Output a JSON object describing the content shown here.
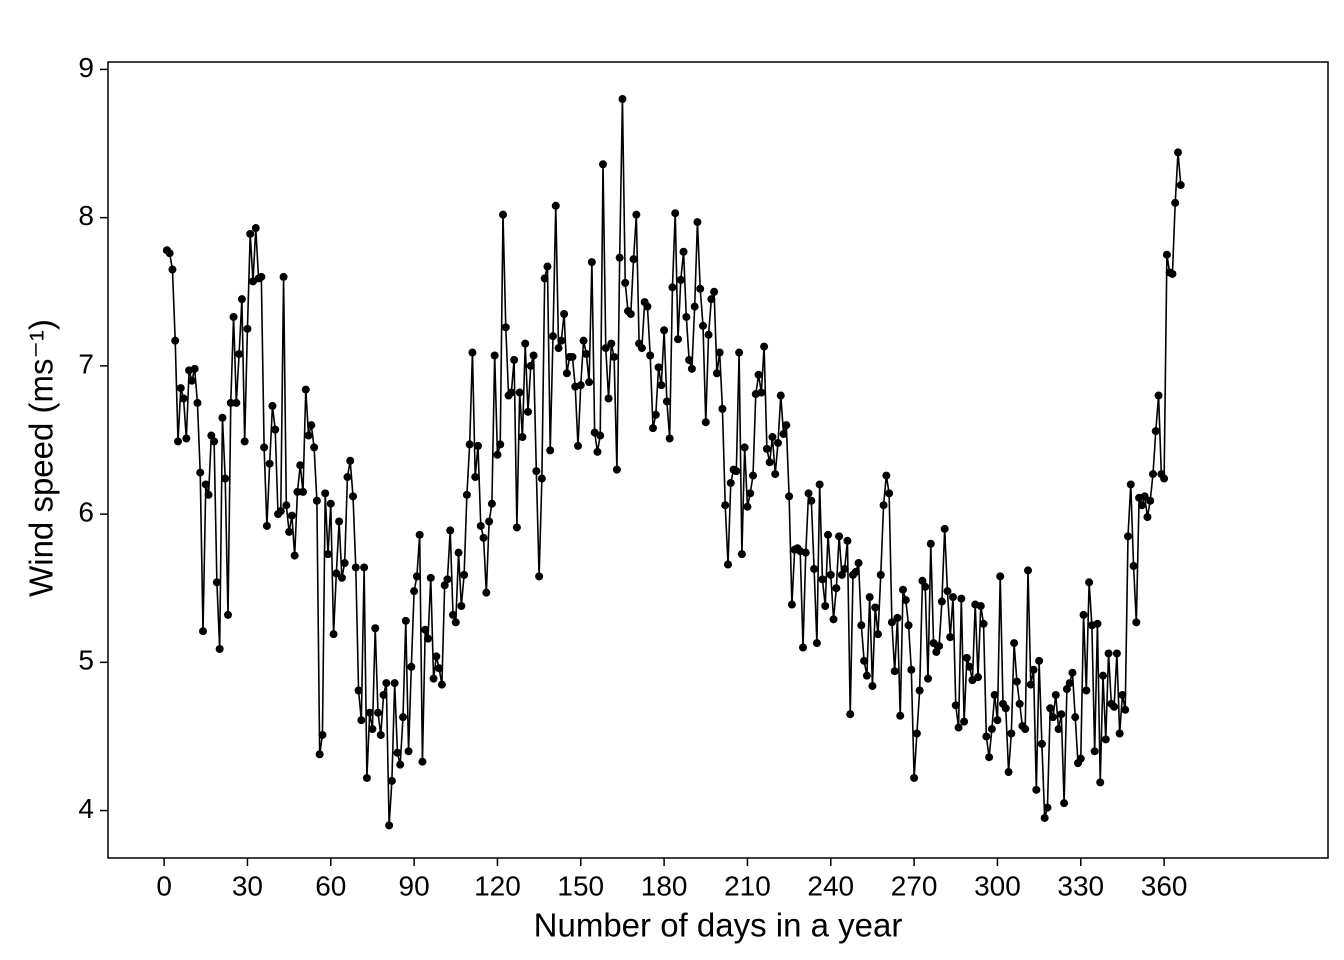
{
  "chart_data": {
    "type": "line",
    "x_label": "Number of days in a year",
    "y_label": "Wind speed (ms⁻¹)",
    "color": "#000000",
    "xlim": [
      -20.2,
      419
    ],
    "ylim": [
      3.68,
      9.05
    ],
    "xticks": [
      0,
      30,
      60,
      90,
      120,
      150,
      180,
      210,
      240,
      270,
      300,
      330,
      360
    ],
    "yticks": [
      4,
      5,
      6,
      7,
      8,
      9
    ],
    "x": [
      1,
      2,
      3,
      4,
      5,
      6,
      7,
      8,
      9,
      10,
      11,
      12,
      13,
      14,
      15,
      16,
      17,
      18,
      19,
      20,
      21,
      22,
      23,
      24,
      25,
      26,
      27,
      28,
      29,
      30,
      31,
      32,
      33,
      34,
      35,
      36,
      37,
      38,
      39,
      40,
      41,
      42,
      43,
      44,
      45,
      46,
      47,
      48,
      49,
      50,
      51,
      52,
      53,
      54,
      55,
      56,
      57,
      58,
      59,
      60,
      61,
      62,
      63,
      64,
      65,
      66,
      67,
      68,
      69,
      70,
      71,
      72,
      73,
      74,
      75,
      76,
      77,
      78,
      79,
      80,
      81,
      82,
      83,
      84,
      85,
      86,
      87,
      88,
      89,
      90,
      91,
      92,
      93,
      94,
      95,
      96,
      97,
      98,
      99,
      100,
      101,
      102,
      103,
      104,
      105,
      106,
      107,
      108,
      109,
      110,
      111,
      112,
      113,
      114,
      115,
      116,
      117,
      118,
      119,
      120,
      121,
      122,
      123,
      124,
      125,
      126,
      127,
      128,
      129,
      130,
      131,
      132,
      133,
      134,
      135,
      136,
      137,
      138,
      139,
      140,
      141,
      142,
      143,
      144,
      145,
      146,
      147,
      148,
      149,
      150,
      151,
      152,
      153,
      154,
      155,
      156,
      157,
      158,
      159,
      160,
      161,
      162,
      163,
      164,
      165,
      166,
      167,
      168,
      169,
      170,
      171,
      172,
      173,
      174,
      175,
      176,
      177,
      178,
      179,
      180,
      181,
      182,
      183,
      184,
      185,
      186,
      187,
      188,
      189,
      190,
      191,
      192,
      193,
      194,
      195,
      196,
      197,
      198,
      199,
      200,
      201,
      202,
      203,
      204,
      205,
      206,
      207,
      208,
      209,
      210,
      211,
      212,
      213,
      214,
      215,
      216,
      217,
      218,
      219,
      220,
      221,
      222,
      223,
      224,
      225,
      226,
      227,
      228,
      229,
      230,
      231,
      232,
      233,
      234,
      235,
      236,
      237,
      238,
      239,
      240,
      241,
      242,
      243,
      244,
      245,
      246,
      247,
      248,
      249,
      250,
      251,
      252,
      253,
      254,
      255,
      256,
      257,
      258,
      259,
      260,
      261,
      262,
      263,
      264,
      265,
      266,
      267,
      268,
      269,
      270,
      271,
      272,
      273,
      274,
      275,
      276,
      277,
      278,
      279,
      280,
      281,
      282,
      283,
      284,
      285,
      286,
      287,
      288,
      289,
      290,
      291,
      292,
      293,
      294,
      295,
      296,
      297,
      298,
      299,
      300,
      301,
      302,
      303,
      304,
      305,
      306,
      307,
      308,
      309,
      310,
      311,
      312,
      313,
      314,
      315,
      316,
      317,
      318,
      319,
      320,
      321,
      322,
      323,
      324,
      325,
      326,
      327,
      328,
      329,
      330,
      331,
      332,
      333,
      334,
      335,
      336,
      337,
      338,
      339,
      340,
      341,
      342,
      343,
      344,
      345,
      346,
      347,
      348,
      349,
      350,
      351,
      352,
      353,
      354,
      355,
      356,
      357,
      358,
      359,
      360,
      361,
      362,
      363,
      364,
      365,
      366
    ],
    "values": [
      7.78,
      7.76,
      7.65,
      7.17,
      6.49,
      6.85,
      6.78,
      6.51,
      6.97,
      6.9,
      6.98,
      6.75,
      6.28,
      5.21,
      6.2,
      6.13,
      6.53,
      6.49,
      5.54,
      5.09,
      6.65,
      6.24,
      5.32,
      6.75,
      7.33,
      6.75,
      7.08,
      7.45,
      6.49,
      7.25,
      7.89,
      7.57,
      7.93,
      7.59,
      7.6,
      6.45,
      5.92,
      6.34,
      6.73,
      6.57,
      6.0,
      6.02,
      7.6,
      6.06,
      5.88,
      5.99,
      5.72,
      6.15,
      6.33,
      6.15,
      6.84,
      6.53,
      6.6,
      6.45,
      6.09,
      4.38,
      4.51,
      6.14,
      5.73,
      6.07,
      5.19,
      5.6,
      5.95,
      5.57,
      5.67,
      6.25,
      6.36,
      6.12,
      5.64,
      4.81,
      4.61,
      5.64,
      4.22,
      4.66,
      4.55,
      5.23,
      4.66,
      4.51,
      4.78,
      4.86,
      3.9,
      4.2,
      4.86,
      4.39,
      4.31,
      4.63,
      5.28,
      4.4,
      4.97,
      5.48,
      5.58,
      5.86,
      4.33,
      5.22,
      5.16,
      5.57,
      4.89,
      5.04,
      4.96,
      4.85,
      5.52,
      5.56,
      5.89,
      5.32,
      5.27,
      5.74,
      5.38,
      5.59,
      6.13,
      6.47,
      7.09,
      6.25,
      6.46,
      5.92,
      5.84,
      5.47,
      5.95,
      6.07,
      7.07,
      6.4,
      6.47,
      8.02,
      7.26,
      6.8,
      6.82,
      7.04,
      5.91,
      6.82,
      6.52,
      7.15,
      6.69,
      7.0,
      7.07,
      6.29,
      5.58,
      6.24,
      7.59,
      7.67,
      6.43,
      7.2,
      8.08,
      7.12,
      7.17,
      7.35,
      6.95,
      7.06,
      7.06,
      6.86,
      6.46,
      6.87,
      7.17,
      7.08,
      6.89,
      7.7,
      6.55,
      6.42,
      6.53,
      8.36,
      7.12,
      6.78,
      7.15,
      7.06,
      6.3,
      7.73,
      8.8,
      7.56,
      7.37,
      7.35,
      7.72,
      8.02,
      7.15,
      7.12,
      7.43,
      7.4,
      7.07,
      6.58,
      6.67,
      6.99,
      6.87,
      7.24,
      6.76,
      6.51,
      7.53,
      8.03,
      7.18,
      7.58,
      7.77,
      7.33,
      7.04,
      6.98,
      7.4,
      7.97,
      7.52,
      7.27,
      6.62,
      7.21,
      7.45,
      7.5,
      6.95,
      7.09,
      6.71,
      6.06,
      5.66,
      6.21,
      6.3,
      6.29,
      7.09,
      5.73,
      6.45,
      6.05,
      6.14,
      6.26,
      6.81,
      6.94,
      6.82,
      7.13,
      6.44,
      6.35,
      6.52,
      6.27,
      6.48,
      6.8,
      6.54,
      6.6,
      6.12,
      5.39,
      5.76,
      5.77,
      5.75,
      5.1,
      5.74,
      6.14,
      6.09,
      5.63,
      5.13,
      6.2,
      5.56,
      5.38,
      5.86,
      5.59,
      5.29,
      5.5,
      5.85,
      5.59,
      5.63,
      5.82,
      4.65,
      5.59,
      5.61,
      5.67,
      5.25,
      5.01,
      4.91,
      5.44,
      4.84,
      5.37,
      5.19,
      5.59,
      6.06,
      6.26,
      6.14,
      5.27,
      4.94,
      5.3,
      4.64,
      5.49,
      5.42,
      5.25,
      4.95,
      4.22,
      4.52,
      4.81,
      5.55,
      5.51,
      4.89,
      5.8,
      5.13,
      5.07,
      5.11,
      5.41,
      5.9,
      5.48,
      5.17,
      5.44,
      4.71,
      4.56,
      5.43,
      4.6,
      5.03,
      4.97,
      4.88,
      5.39,
      4.9,
      5.38,
      5.26,
      4.5,
      4.36,
      4.55,
      4.78,
      4.61,
      5.58,
      4.72,
      4.69,
      4.26,
      4.52,
      5.13,
      4.87,
      4.72,
      4.57,
      4.55,
      5.62,
      4.85,
      4.95,
      4.14,
      5.01,
      4.45,
      3.95,
      4.02,
      4.69,
      4.63,
      4.78,
      4.55,
      4.65,
      4.05,
      4.82,
      4.86,
      4.93,
      4.63,
      4.32,
      4.35,
      5.32,
      4.81,
      5.54,
      5.25,
      4.4,
      5.26,
      4.19,
      4.91,
      4.48,
      5.06,
      4.72,
      4.7,
      5.06,
      4.52,
      4.78,
      4.68,
      5.85,
      6.2,
      5.65,
      5.27,
      6.11,
      6.06,
      6.12,
      5.98,
      6.09,
      6.27,
      6.56,
      6.8,
      6.27,
      6.24,
      7.75,
      7.63,
      7.62,
      8.1,
      8.44,
      8.22
    ]
  }
}
